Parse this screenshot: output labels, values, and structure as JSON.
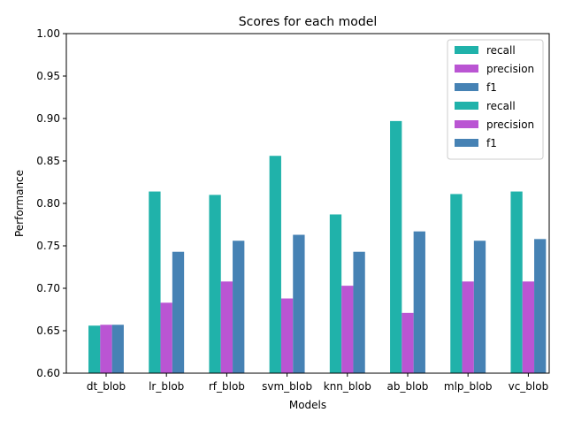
{
  "chart_data": {
    "type": "bar",
    "title": "Scores for each model",
    "xlabel": "Models",
    "ylabel": "Performance",
    "ylim": [
      0.6,
      1.0
    ],
    "yticks": [
      "0.60",
      "0.65",
      "0.70",
      "0.75",
      "0.80",
      "0.85",
      "0.90",
      "0.95",
      "1.00"
    ],
    "categories": [
      "dt_blob",
      "lr_blob",
      "rf_blob",
      "svm_blob",
      "knn_blob",
      "ab_blob",
      "mlp_blob",
      "vc_blob"
    ],
    "series": [
      {
        "name": "recall",
        "color": "#20b2aa",
        "values": [
          0.656,
          0.814,
          0.81,
          0.856,
          0.787,
          0.897,
          0.811,
          0.814
        ]
      },
      {
        "name": "precision",
        "color": "#ba55d3",
        "values": [
          0.657,
          0.683,
          0.708,
          0.688,
          0.703,
          0.671,
          0.708,
          0.708
        ]
      },
      {
        "name": "f1",
        "color": "#4682b4",
        "values": [
          0.657,
          0.743,
          0.756,
          0.763,
          0.743,
          0.767,
          0.756,
          0.758
        ]
      }
    ],
    "legend": {
      "placement": "top-right",
      "entries": [
        {
          "label": "recall",
          "color": "#20b2aa"
        },
        {
          "label": "precision",
          "color": "#ba55d3"
        },
        {
          "label": "f1",
          "color": "#4682b4"
        },
        {
          "label": "recall",
          "color": "#20b2aa"
        },
        {
          "label": "precision",
          "color": "#ba55d3"
        },
        {
          "label": "f1",
          "color": "#4682b4"
        }
      ]
    },
    "grid": false
  }
}
